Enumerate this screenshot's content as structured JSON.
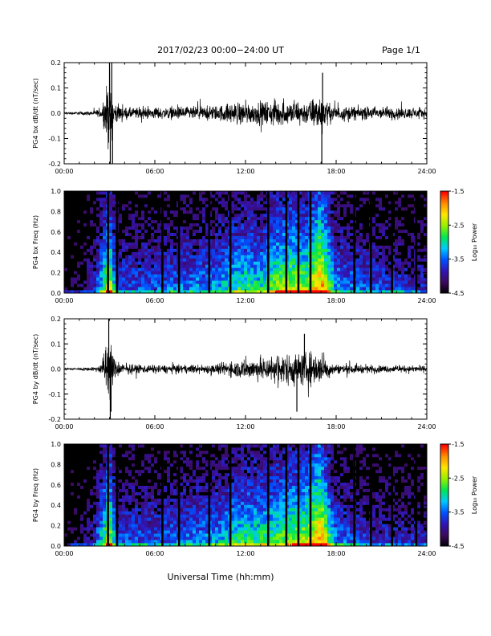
{
  "header": {
    "title": "2017/02/23  00:00−24:00 UT",
    "page": "Page 1/1"
  },
  "footer": {
    "xlabel": "Universal Time (hh:mm)"
  },
  "colorbar": {
    "label": "Log₁₀ Power",
    "ticks": [
      "-1.5",
      "-2.5",
      "-3.5",
      "-4.5"
    ]
  },
  "colors": {
    "background": "#ffffff",
    "trace": "#000000",
    "colormap": [
      "#000000",
      "#3c0a5a",
      "#3214b4",
      "#0050ff",
      "#00c8ff",
      "#00e650",
      "#96f000",
      "#ffe600",
      "#ff8c00",
      "#ff0000"
    ]
  },
  "chart_data": [
    {
      "type": "line",
      "panel": "bx-waveform",
      "ylabel": "PG4 bx dB/dt (nT/sec)",
      "xlim": [
        0,
        24
      ],
      "ylim": [
        -0.2,
        0.2
      ],
      "x_ticks": [
        "00:00",
        "06:00",
        "12:00",
        "18:00",
        "24:00"
      ],
      "y_ticks": [
        "-0.2",
        "-0.1",
        "0.0",
        "0.1",
        "0.2"
      ],
      "envelope": {
        "x": [
          0,
          1,
          2,
          2.5,
          2.9,
          3.1,
          3.3,
          4,
          6,
          8,
          10,
          10.8,
          11.5,
          12.5,
          14,
          15,
          15.5,
          16,
          16.5,
          17,
          17.5,
          18,
          20,
          22,
          24
        ],
        "amplitude": [
          0.008,
          0.01,
          0.015,
          0.03,
          0.2,
          0.2,
          0.06,
          0.035,
          0.035,
          0.04,
          0.045,
          0.06,
          0.07,
          0.065,
          0.08,
          0.07,
          0.08,
          0.07,
          0.09,
          0.12,
          0.06,
          0.045,
          0.04,
          0.035,
          0.03
        ]
      },
      "spikes": [
        {
          "x": 3.0,
          "y": 0.2
        },
        {
          "x": 3.05,
          "y": -0.2
        },
        {
          "x": 3.15,
          "y": 0.2
        },
        {
          "x": 3.2,
          "y": -0.2
        },
        {
          "x": 17.1,
          "y": 0.16
        },
        {
          "x": 17.05,
          "y": -0.2
        }
      ]
    },
    {
      "type": "heatmap",
      "panel": "bx-spectrogram",
      "ylabel": "PG4 bx Freq (Hz)",
      "xlim": [
        0,
        24
      ],
      "ylim": [
        0.0,
        1.0
      ],
      "clim": [
        -4.5,
        -1.5
      ],
      "x_ticks": [
        "00:00",
        "06:00",
        "12:00",
        "18:00",
        "24:00"
      ],
      "y_ticks": [
        "0.0",
        "0.2",
        "0.4",
        "0.6",
        "0.8",
        "1.0"
      ],
      "activity": {
        "x": [
          0,
          1,
          2,
          2.5,
          3,
          3.5,
          4,
          6,
          8,
          10,
          11,
          12,
          13,
          14,
          15,
          16,
          17,
          18,
          19,
          20,
          22,
          24
        ],
        "level": [
          0.05,
          0.1,
          0.25,
          0.55,
          0.8,
          0.3,
          0.35,
          0.35,
          0.4,
          0.45,
          0.55,
          0.6,
          0.55,
          0.7,
          0.75,
          0.7,
          0.95,
          0.45,
          0.4,
          0.35,
          0.3,
          0.25
        ]
      },
      "gaps_hours": [
        2.9,
        3.5,
        6.5,
        7.6,
        9.6,
        11.0,
        13.5,
        14.7,
        15.5,
        16.3,
        19.2,
        20.3,
        21.7,
        23.3
      ]
    },
    {
      "type": "line",
      "panel": "by-waveform",
      "ylabel": "PG4 by dB/dt (nT/sec)",
      "xlim": [
        0,
        24
      ],
      "ylim": [
        -0.2,
        0.2
      ],
      "x_ticks": [
        "00:00",
        "06:00",
        "12:00",
        "18:00",
        "24:00"
      ],
      "y_ticks": [
        "-0.2",
        "-0.1",
        "0.0",
        "0.1",
        "0.2"
      ],
      "envelope": {
        "x": [
          0,
          1,
          2,
          2.5,
          2.9,
          3.1,
          3.3,
          4,
          6,
          8,
          10,
          10.5,
          11.5,
          12.5,
          13.5,
          14.5,
          15.5,
          16.5,
          17.2,
          18,
          20,
          22,
          24
        ],
        "amplitude": [
          0.006,
          0.008,
          0.012,
          0.03,
          0.2,
          0.2,
          0.06,
          0.03,
          0.025,
          0.025,
          0.03,
          0.04,
          0.055,
          0.065,
          0.08,
          0.1,
          0.1,
          0.11,
          0.07,
          0.03,
          0.025,
          0.02,
          0.02
        ]
      },
      "spikes": [
        {
          "x": 2.95,
          "y": 0.2
        },
        {
          "x": 3.05,
          "y": -0.2
        },
        {
          "x": 3.1,
          "y": -0.17
        },
        {
          "x": 15.4,
          "y": -0.17
        },
        {
          "x": 15.9,
          "y": 0.14
        }
      ]
    },
    {
      "type": "heatmap",
      "panel": "by-spectrogram",
      "ylabel": "PG4 by Freq (Hz)",
      "xlim": [
        0,
        24
      ],
      "ylim": [
        0.0,
        1.0
      ],
      "clim": [
        -4.5,
        -1.5
      ],
      "x_ticks": [
        "00:00",
        "06:00",
        "12:00",
        "18:00",
        "24:00"
      ],
      "y_ticks": [
        "0.0",
        "0.2",
        "0.4",
        "0.6",
        "0.8",
        "1.0"
      ],
      "activity": {
        "x": [
          0,
          1,
          2,
          2.5,
          3,
          3.5,
          4,
          6,
          8,
          10,
          11,
          12,
          13,
          14,
          15,
          16,
          17,
          18,
          19,
          20,
          22,
          24
        ],
        "level": [
          0.05,
          0.1,
          0.25,
          0.55,
          0.8,
          0.3,
          0.35,
          0.35,
          0.4,
          0.45,
          0.55,
          0.6,
          0.6,
          0.65,
          0.7,
          0.75,
          0.95,
          0.4,
          0.35,
          0.3,
          0.25,
          0.25
        ]
      },
      "gaps_hours": [
        2.9,
        3.5,
        6.5,
        7.6,
        9.6,
        11.0,
        13.5,
        14.7,
        15.5,
        16.3,
        19.2,
        20.3,
        21.7,
        23.3
      ]
    }
  ]
}
